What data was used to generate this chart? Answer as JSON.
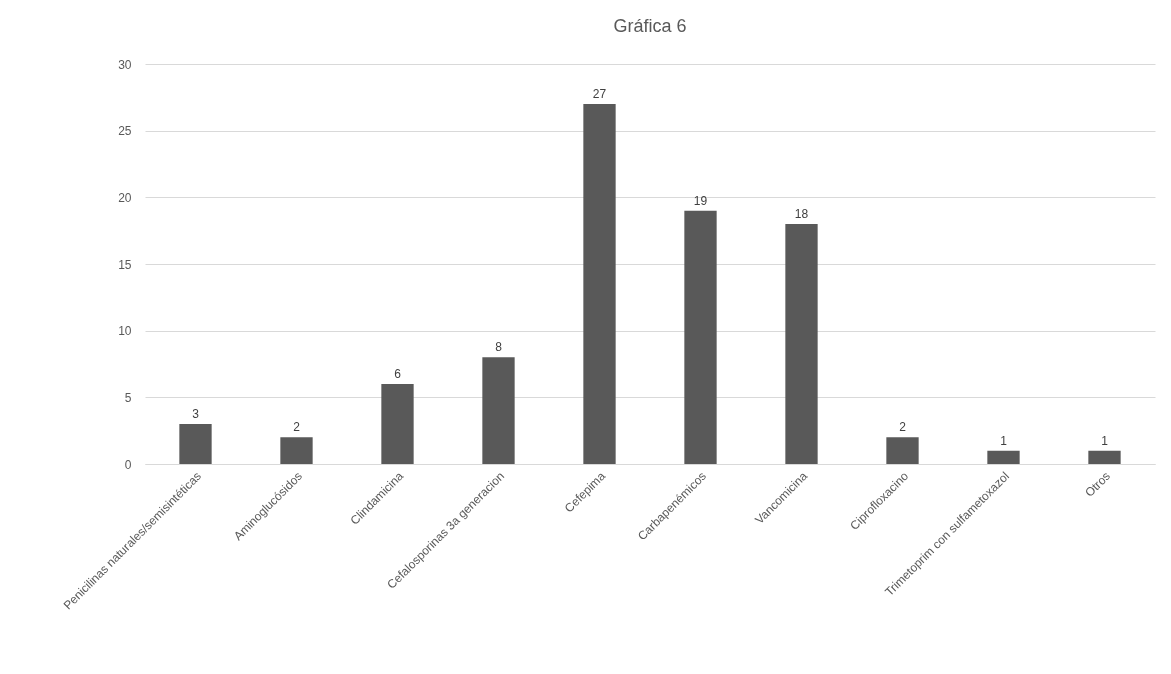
{
  "chart_data": {
    "type": "bar",
    "title": "Gráfica 6",
    "categories": [
      "Penicilinas naturales/semisintéticas",
      "Aminoglucósidos",
      "Clindamicina",
      "Cefalosporinas 3a generacion",
      "Cefepima",
      "Carbapenémicos",
      "Vancomicina",
      "Ciprofloxacino",
      "Trimetoprim con sulfametoxazol",
      "Otros"
    ],
    "values": [
      3,
      2,
      6,
      8,
      27,
      19,
      18,
      2,
      1,
      1
    ],
    "color": "#595959",
    "ylim": [
      0,
      30
    ],
    "yticks": [
      0,
      5,
      10,
      15,
      20,
      25,
      30
    ],
    "grid": "y",
    "data_labels": true
  }
}
